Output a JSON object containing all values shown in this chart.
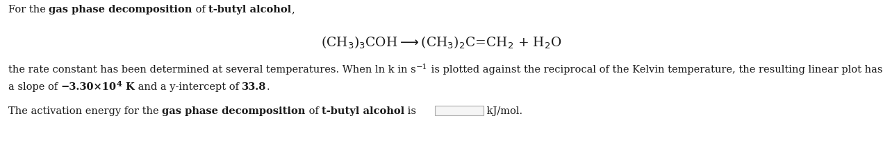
{
  "bg_color": "#ffffff",
  "text_color": "#1a1a1a",
  "font_size": 10.5,
  "eq_font_size": 13.5,
  "line1_parts": [
    {
      "text": "For the ",
      "bold": false
    },
    {
      "text": "gas phase decomposition",
      "bold": true
    },
    {
      "text": " of ",
      "bold": false
    },
    {
      "text": "t-butyl alcohol",
      "bold": true
    },
    {
      "text": ",",
      "bold": false
    }
  ],
  "line3_parts": [
    {
      "text": "the rate constant has been determined at several temperatures. When ln k in s",
      "bold": false
    },
    {
      "text": "−1",
      "bold": false,
      "sup": true
    },
    {
      "text": " is plotted against the reciprocal of the Kelvin temperature, the resulting linear plot has",
      "bold": false
    }
  ],
  "line4_parts": [
    {
      "text": "a slope of ",
      "bold": false
    },
    {
      "text": "−3.30×10",
      "bold": true
    },
    {
      "text": "4",
      "bold": true,
      "sup": true
    },
    {
      "text": " K",
      "bold": true
    },
    {
      "text": " and a y-intercept of ",
      "bold": false
    },
    {
      "text": "33.8",
      "bold": true
    },
    {
      "text": ".",
      "bold": false
    }
  ],
  "line5_parts": [
    {
      "text": "The activation energy for the ",
      "bold": false
    },
    {
      "text": "gas phase decomposition",
      "bold": true
    },
    {
      "text": " of ",
      "bold": false
    },
    {
      "text": "t-butyl alcohol",
      "bold": true
    },
    {
      "text": " is",
      "bold": false
    }
  ],
  "line5_units": " kJ/mol.",
  "eq_text": "(CH$_3$)$_3$COH—→(CH$_3$)$_2$C=CH$_2$ + H$_2$O"
}
